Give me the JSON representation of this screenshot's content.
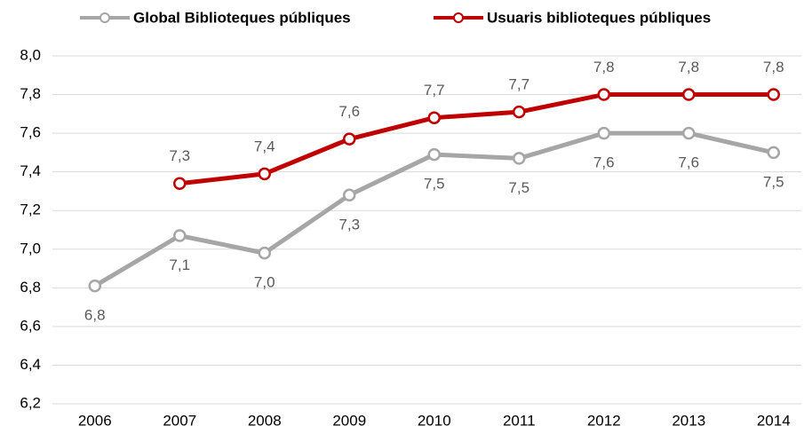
{
  "chart_data": {
    "type": "line",
    "categories": [
      "2006",
      "2007",
      "2008",
      "2009",
      "2010",
      "2011",
      "2012",
      "2013",
      "2014"
    ],
    "series": [
      {
        "name": "Global Biblioteques públiques",
        "color": "#a6a6a6",
        "values": [
          6.81,
          7.07,
          6.98,
          7.28,
          7.49,
          7.47,
          7.6,
          7.6,
          7.5
        ],
        "value_labels": [
          "6,8",
          "7,1",
          "7,0",
          "7,3",
          "7,5",
          "7,5",
          "7,6",
          "7,6",
          "7,5"
        ]
      },
      {
        "name": "Usuaris biblioteques públiques",
        "color": "#c00000",
        "values": [
          null,
          7.34,
          7.39,
          7.57,
          7.68,
          7.71,
          7.8,
          7.8,
          7.8
        ],
        "value_labels": [
          null,
          "7,3",
          "7,4",
          "7,6",
          "7,7",
          "7,7",
          "7,8",
          "7,8",
          "7,8"
        ]
      }
    ],
    "ylim": [
      6.2,
      8.0
    ],
    "yticks": [
      {
        "value": 6.2,
        "label": "6,2"
      },
      {
        "value": 6.4,
        "label": "6,4"
      },
      {
        "value": 6.6,
        "label": "6,6"
      },
      {
        "value": 6.8,
        "label": "6,8"
      },
      {
        "value": 7.0,
        "label": "7,0"
      },
      {
        "value": 7.2,
        "label": "7,2"
      },
      {
        "value": 7.4,
        "label": "7,4"
      },
      {
        "value": 7.6,
        "label": "7,6"
      },
      {
        "value": 7.8,
        "label": "7,8"
      },
      {
        "value": 8.0,
        "label": "8,0"
      }
    ],
    "grid": true,
    "legend": "top"
  }
}
